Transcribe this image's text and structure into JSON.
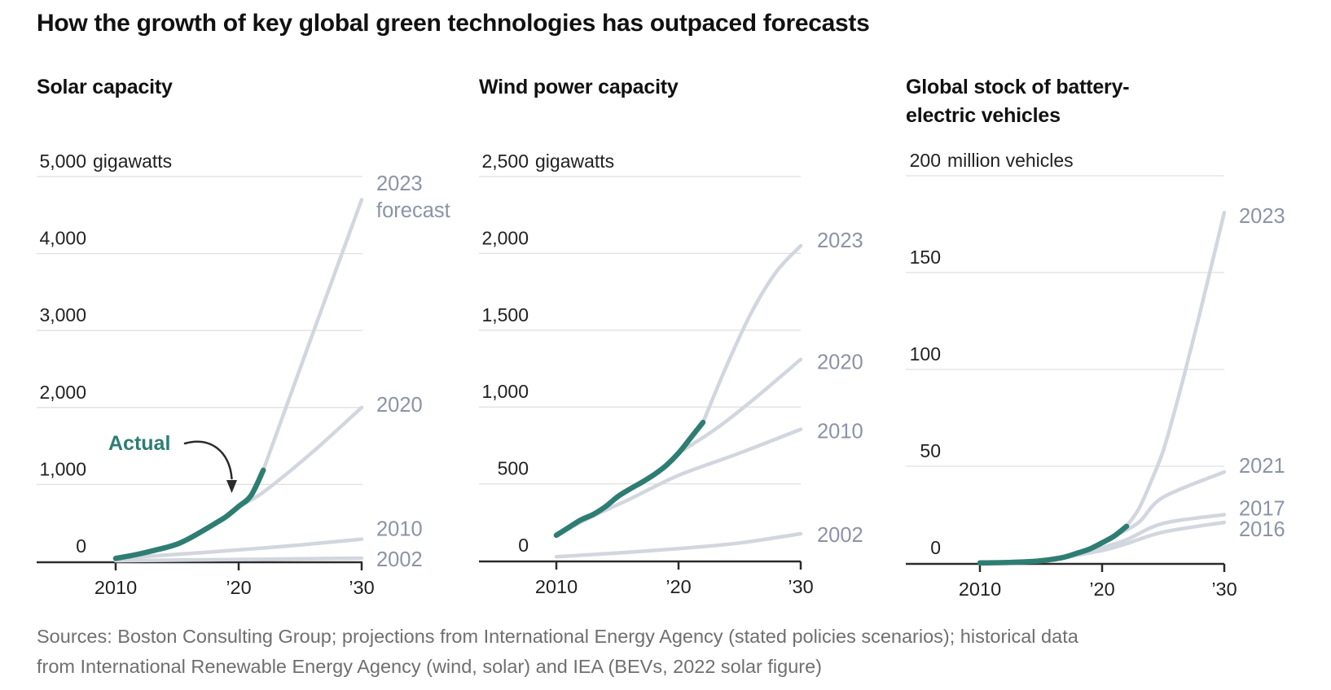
{
  "title": "How the growth of key global green technologies has outpaced forecasts",
  "annotation": {
    "label": "Actual"
  },
  "source": {
    "lines": [
      "Sources: Boston Consulting Group; projections from International Energy Agency (stated policies scenarios); historical data",
      "from International Renewable Energy Agency (wind, solar) and IEA (BEVs, 2022 solar figure)"
    ]
  },
  "colors": {
    "actual_line": "#2e7d73",
    "forecast_line": "#d2d6de",
    "series_label": "#8b93a6",
    "grid_line": "#e0e0e0",
    "axis_line": "#2b2b2b",
    "axis_text": "#222222",
    "title_text": "#111111",
    "source_text": "#6f6f6f"
  },
  "chart_data": [
    {
      "type": "line",
      "title": "Solar capacity",
      "unit": "gigawatts",
      "y_axis": {
        "max": 5000,
        "ticks": [
          5000,
          4000,
          3000,
          2000,
          1000,
          0
        ],
        "tick_labels": [
          "5,000",
          "4,000",
          "3,000",
          "2,000",
          "1,000",
          "0"
        ]
      },
      "x_axis": {
        "ticks": [
          2010,
          2020,
          2030
        ],
        "tick_labels": [
          "2010",
          "’20",
          "’30"
        ],
        "range": [
          2004,
          2030
        ]
      },
      "grid": true,
      "legend_position": "line-ends-right",
      "series": [
        {
          "name": "2002-forecast",
          "label": "2002",
          "kind": "forecast",
          "label_dy": 1,
          "points": [
            [
              2010,
              10
            ],
            [
              2020,
              25
            ],
            [
              2030,
              42
            ]
          ]
        },
        {
          "name": "2010-forecast",
          "label": "2010",
          "kind": "forecast",
          "label_dy": -13,
          "points": [
            [
              2010,
              40
            ],
            [
              2015,
              92
            ],
            [
              2020,
              150
            ],
            [
              2025,
              215
            ],
            [
              2030,
              290
            ]
          ]
        },
        {
          "name": "2020-forecast",
          "label": "2020",
          "kind": "forecast",
          "label_dy": -4,
          "points": [
            [
              2020,
              715
            ],
            [
              2022,
              900
            ],
            [
              2026,
              1420
            ],
            [
              2030,
              2000
            ]
          ]
        },
        {
          "name": "2023-forecast",
          "label": "2023\nforecast",
          "kind": "forecast",
          "label_dy": -4,
          "points": [
            [
              2022,
              1185
            ],
            [
              2026,
              2950
            ],
            [
              2030,
              4700
            ]
          ]
        },
        {
          "name": "actual",
          "label": "",
          "kind": "actual",
          "points": [
            [
              2010,
              40
            ],
            [
              2011,
              68
            ],
            [
              2012,
              100
            ],
            [
              2013,
              138
            ],
            [
              2014,
              178
            ],
            [
              2015,
              225
            ],
            [
              2016,
              300
            ],
            [
              2017,
              390
            ],
            [
              2018,
              485
            ],
            [
              2019,
              585
            ],
            [
              2020,
              715
            ],
            [
              2021,
              855
            ],
            [
              2022,
              1185
            ]
          ]
        }
      ]
    },
    {
      "type": "line",
      "title": "Wind power capacity",
      "unit": "gigawatts",
      "y_axis": {
        "max": 2500,
        "ticks": [
          2500,
          2000,
          1500,
          1000,
          500,
          0
        ],
        "tick_labels": [
          "2,500",
          "2,000",
          "1,500",
          "1,000",
          "500",
          "0"
        ]
      },
      "x_axis": {
        "ticks": [
          2010,
          2020,
          2030
        ],
        "tick_labels": [
          "2010",
          "’20",
          "’30"
        ],
        "range": [
          2002,
          2030
        ]
      },
      "grid": true,
      "legend_position": "line-ends-right",
      "series": [
        {
          "name": "2002-forecast",
          "label": "2002",
          "kind": "forecast",
          "label_dy": 1,
          "points": [
            [
              2010,
              25
            ],
            [
              2015,
              50
            ],
            [
              2020,
              78
            ],
            [
              2025,
              115
            ],
            [
              2030,
              175
            ]
          ]
        },
        {
          "name": "2010-forecast",
          "label": "2010",
          "kind": "forecast",
          "label_dy": 2,
          "points": [
            [
              2010,
              165
            ],
            [
              2013,
              290
            ],
            [
              2016,
              400
            ],
            [
              2020,
              555
            ],
            [
              2025,
              700
            ],
            [
              2030,
              855
            ]
          ]
        },
        {
          "name": "2020-forecast",
          "label": "2020",
          "kind": "forecast",
          "label_dy": 3,
          "points": [
            [
              2020,
              700
            ],
            [
              2023,
              855
            ],
            [
              2026,
              1040
            ],
            [
              2030,
              1310
            ]
          ]
        },
        {
          "name": "2023-forecast",
          "label": "2023",
          "kind": "forecast",
          "label_dy": -7,
          "points": [
            [
              2022,
              900
            ],
            [
              2024,
              1280
            ],
            [
              2026,
              1620
            ],
            [
              2028,
              1880
            ],
            [
              2030,
              2050
            ]
          ]
        },
        {
          "name": "actual",
          "label": "",
          "kind": "actual",
          "points": [
            [
              2010,
              165
            ],
            [
              2011,
              215
            ],
            [
              2012,
              265
            ],
            [
              2013,
              300
            ],
            [
              2014,
              350
            ],
            [
              2015,
              415
            ],
            [
              2016,
              465
            ],
            [
              2017,
              510
            ],
            [
              2018,
              560
            ],
            [
              2019,
              620
            ],
            [
              2020,
              700
            ],
            [
              2021,
              800
            ],
            [
              2022,
              900
            ]
          ]
        }
      ]
    },
    {
      "type": "line",
      "title": "Global stock of battery-electric vehicles",
      "unit": "million vehicles",
      "y_axis": {
        "max": 200,
        "ticks": [
          200,
          150,
          100,
          50,
          0
        ],
        "tick_labels": [
          "200",
          "150",
          "100",
          "50",
          "0"
        ]
      },
      "x_axis": {
        "ticks": [
          2010,
          2020,
          2030
        ],
        "tick_labels": [
          "2010",
          "’20",
          "’30"
        ],
        "range": [
          2004,
          2030
        ]
      },
      "grid": true,
      "legend_position": "line-ends-right",
      "series": [
        {
          "name": "2016-forecast",
          "label": "2016",
          "kind": "forecast",
          "label_dy": 8,
          "points": [
            [
              2016,
              2
            ],
            [
              2020,
              6.5
            ],
            [
              2022,
              10
            ],
            [
              2025,
              16
            ],
            [
              2030,
              21
            ]
          ]
        },
        {
          "name": "2017-forecast",
          "label": "2017",
          "kind": "forecast",
          "label_dy": -8,
          "points": [
            [
              2017,
              3.2
            ],
            [
              2020,
              8
            ],
            [
              2022,
              12
            ],
            [
              2025,
              20.5
            ],
            [
              2030,
              25
            ]
          ]
        },
        {
          "name": "2021-forecast",
          "label": "2021",
          "kind": "forecast",
          "label_dy": -8,
          "points": [
            [
              2021,
              14
            ],
            [
              2023,
              21
            ],
            [
              2025,
              34
            ],
            [
              2030,
              47
            ]
          ]
        },
        {
          "name": "2023-forecast",
          "label": "2023",
          "kind": "forecast",
          "label_dy": 4,
          "points": [
            [
              2022,
              19
            ],
            [
              2023,
              28
            ],
            [
              2024,
              42
            ],
            [
              2025,
              58
            ],
            [
              2026,
              80
            ],
            [
              2027,
              104
            ],
            [
              2028,
              129
            ],
            [
              2029,
              155
            ],
            [
              2030,
              181
            ]
          ]
        },
        {
          "name": "actual",
          "label": "",
          "kind": "actual",
          "points": [
            [
              2010,
              0.1
            ],
            [
              2011,
              0.15
            ],
            [
              2012,
              0.25
            ],
            [
              2013,
              0.45
            ],
            [
              2014,
              0.7
            ],
            [
              2015,
              1.2
            ],
            [
              2016,
              2
            ],
            [
              2017,
              3.2
            ],
            [
              2018,
              5.2
            ],
            [
              2019,
              7.3
            ],
            [
              2020,
              10.5
            ],
            [
              2021,
              14
            ],
            [
              2022,
              19
            ]
          ]
        }
      ]
    }
  ]
}
